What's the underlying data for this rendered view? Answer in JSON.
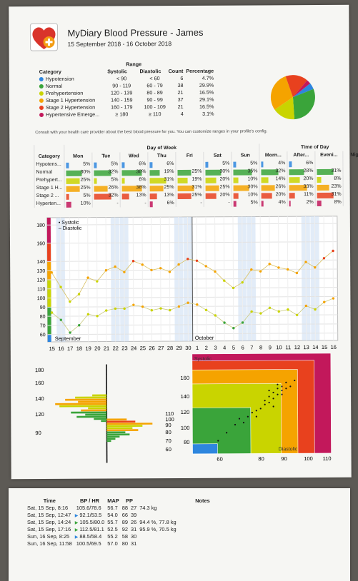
{
  "header": {
    "title": "MyDiary Blood Pressure - James",
    "date_range": "15 September 2018 - 16 October 2018"
  },
  "range_table": {
    "group_header": "Range",
    "headers": [
      "Category",
      "Systolic",
      "Diastolic",
      "Count",
      "Percentage"
    ],
    "rows": [
      {
        "name": "Hypotension",
        "color": "#2e86de",
        "systolic": "< 90",
        "diastolic": "< 60",
        "count": "6",
        "pct": "4.7%"
      },
      {
        "name": "Normal",
        "color": "#3aa43a",
        "systolic": "90 - 119",
        "diastolic": "60 - 79",
        "count": "38",
        "pct": "29.9%"
      },
      {
        "name": "Prehypertension",
        "color": "#c9d400",
        "systolic": "120 - 139",
        "diastolic": "80 - 89",
        "count": "21",
        "pct": "16.5%"
      },
      {
        "name": "Stage 1 Hypertension",
        "color": "#f5a300",
        "systolic": "140 - 159",
        "diastolic": "90 - 99",
        "count": "37",
        "pct": "29.1%"
      },
      {
        "name": "Stage 2 Hypertension",
        "color": "#e8411e",
        "systolic": "160 - 179",
        "diastolic": "100 - 109",
        "count": "21",
        "pct": "16.5%"
      },
      {
        "name": "Hypertensive Emerge...",
        "color": "#c2185b",
        "systolic": "≥ 180",
        "diastolic": "≥ 110",
        "count": "4",
        "pct": "3.1%"
      }
    ]
  },
  "consult_note": "Consult with your health care provider about the best blood pressure for you. You can customize ranges in your profile's config.",
  "dow_table": {
    "group_dow": "Day of Week",
    "group_tod": "Time of Day",
    "headers": [
      "Category",
      "Mon",
      "Tue",
      "Wed",
      "Thu",
      "Fri",
      "Sat",
      "Sun",
      "Morn...",
      "After...",
      "Eveni...",
      "Night"
    ],
    "rows": [
      {
        "name": "Hypotens...",
        "color": "#2e86de",
        "cells": [
          "5%",
          "5%",
          "6%",
          "6%",
          "",
          "5%",
          "5%",
          "4%",
          "6%",
          "",
          "-"
        ]
      },
      {
        "name": "Normal",
        "color": "#3aa43a",
        "cells": [
          "30%",
          "32%",
          "38%",
          "19%",
          "25%",
          "30%",
          "35%",
          "32%",
          "28%",
          "31%",
          "-"
        ]
      },
      {
        "name": "Prehypert...",
        "color": "#c9d400",
        "cells": [
          "25%",
          "5%",
          "6%",
          "31%",
          "19%",
          "20%",
          "10%",
          "14%",
          "20%",
          "8%",
          "-"
        ]
      },
      {
        "name": "Stage 1 H...",
        "color": "#f5a300",
        "cells": [
          "25%",
          "26%",
          "38%",
          "25%",
          "31%",
          "25%",
          "30%",
          "26%",
          "33%",
          "23%",
          "-"
        ]
      },
      {
        "name": "Stage 2 ...",
        "color": "#e8411e",
        "cells": [
          "5%",
          "32%",
          "13%",
          "13%",
          "25%",
          "20%",
          "10%",
          "20%",
          "11%",
          "31%",
          "-"
        ]
      },
      {
        "name": "Hyperten...",
        "color": "#c2185b",
        "cells": [
          "10%",
          "-",
          "-",
          "6%",
          "-",
          "-",
          "5%",
          "4%",
          "2%",
          "8%",
          "-"
        ]
      }
    ]
  },
  "chart_data": [
    {
      "type": "pie",
      "categories": [
        "Hypotension",
        "Normal",
        "Prehypertension",
        "Stage 1 Hypertension",
        "Stage 2 Hypertension",
        "Hypertensive Emerge..."
      ],
      "values": [
        4.7,
        29.9,
        16.5,
        29.1,
        16.5,
        3.1
      ],
      "colors": [
        "#2e86de",
        "#3aa43a",
        "#c9d400",
        "#f5a300",
        "#e8411e",
        "#c2185b"
      ]
    },
    {
      "type": "line",
      "legend": [
        "Systolic",
        "Diastolic"
      ],
      "month_labels": [
        "September",
        "October"
      ],
      "x_tick_labels": [
        "15",
        "16",
        "17",
        "18",
        "19",
        "20",
        "21",
        "22",
        "23",
        "24",
        "25",
        "26",
        "27",
        "28",
        "29",
        "30",
        "1",
        "2",
        "3",
        "4",
        "5",
        "6",
        "7",
        "8",
        "9",
        "10",
        "11",
        "12",
        "13",
        "14",
        "15",
        "16"
      ],
      "y_ticks": [
        60,
        70,
        80,
        90,
        100,
        110,
        120,
        130,
        140,
        160,
        180
      ],
      "ylim": [
        52,
        188
      ],
      "series": [
        {
          "name": "Systolic",
          "values": [
            128,
            112,
            96,
            104,
            122,
            118,
            130,
            134,
            128,
            140,
            136,
            130,
            132,
            128,
            136,
            142,
            140,
            134,
            128,
            118,
            110,
            116,
            130,
            128,
            136,
            132,
            130,
            126,
            138,
            132,
            142,
            150
          ]
        },
        {
          "name": "Diastolic",
          "values": [
            84,
            76,
            62,
            70,
            82,
            80,
            86,
            88,
            88,
            92,
            90,
            86,
            88,
            86,
            90,
            94,
            92,
            86,
            80,
            72,
            66,
            72,
            84,
            82,
            88,
            84,
            86,
            80,
            90,
            86,
            94,
            98
          ]
        }
      ]
    },
    {
      "type": "bar",
      "title": "",
      "left_y_ticks": [
        90,
        120,
        140,
        160,
        180
      ],
      "right_y_ticks": [
        60,
        70,
        80,
        90,
        100,
        110
      ]
    },
    {
      "type": "scatter",
      "zone_labels": [
        "Systolic",
        "Diastolic"
      ],
      "y_ticks": [
        80,
        100,
        120,
        140,
        160
      ],
      "x_ticks": [
        60,
        80,
        90,
        100,
        110
      ]
    }
  ],
  "log_table": {
    "headers": [
      "Time",
      "BP / HR",
      "MAP",
      "PP",
      "Notes"
    ],
    "rows": [
      {
        "time": "Sat, 15 Sep,  8:16",
        "bp": "105.6/78.6",
        "map": "56.7",
        "hr": "88",
        "pp": "27",
        "note": "74.3 kg",
        "flag": ""
      },
      {
        "time": "Sat, 15 Sep, 12:47",
        "bp": "92.1/53.5",
        "map": "54.0",
        "hr": "66",
        "pp": "39",
        "note": "",
        "flag": "#2e86de"
      },
      {
        "time": "Sat, 15 Sep, 14:24",
        "bp": "105.5/80.0",
        "map": "55.7",
        "hr": "89",
        "pp": "26",
        "note": "94.4 %, 77.8 kg",
        "flag": "#3aa43a"
      },
      {
        "time": "Sat, 15 Sep, 17:16",
        "bp": "112.5/81.1",
        "map": "52.5",
        "hr": "92",
        "pp": "31",
        "note": "95.9 %, 70.5 kg",
        "flag": "#3aa43a"
      },
      {
        "time": "Sun, 16 Sep,  8:25",
        "bp": "88.5/58.4",
        "map": "55.2",
        "hr": "58",
        "pp": "30",
        "note": "",
        "flag": "#2e86de"
      },
      {
        "time": "Sun, 16 Sep, 11:58",
        "bp": "100.5/69.5",
        "map": "57.0",
        "hr": "80",
        "pp": "31",
        "note": "",
        "flag": ""
      }
    ]
  }
}
